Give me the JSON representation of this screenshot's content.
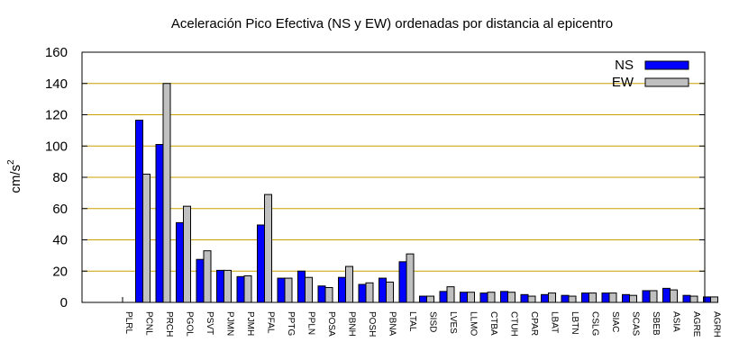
{
  "chart_data": {
    "type": "bar",
    "title": "Aceleración Pico Efectiva (NS y EW) ordenadas por distancia al epicentro",
    "xlabel": "",
    "ylabel": "cm/s",
    "ylabel_superscript": "2",
    "ylim": [
      0,
      160
    ],
    "yticks": [
      0,
      20,
      40,
      60,
      80,
      100,
      120,
      140,
      160
    ],
    "grid": "horizontal",
    "grid_color": "#c8a000",
    "legend_position": "top-right",
    "categories": [
      "PLRL",
      "PCNL",
      "PRCH",
      "PGOL",
      "PSVT",
      "PJMN",
      "PJMH",
      "PFAL",
      "PPTG",
      "PPLN",
      "POSA",
      "PBNH",
      "POSH",
      "PBNA",
      "LTAL",
      "SISD",
      "LVES",
      "LLMO",
      "CTBA",
      "CTUH",
      "CPAR",
      "LBAT",
      "LBTN",
      "CSLG",
      "SIAC",
      "SCAS",
      "SBEB",
      "ASIA",
      "AGRE",
      "AGRH"
    ],
    "series": [
      {
        "name": "NS",
        "color": "#0000ff",
        "values": [
          0,
          116.5,
          101,
          51,
          27.5,
          20.5,
          16.5,
          49.5,
          15.5,
          20,
          10.5,
          16,
          11.5,
          15.5,
          26,
          4,
          7,
          6.5,
          6,
          7,
          5,
          5,
          4.5,
          6,
          6,
          5,
          7.5,
          9,
          4.5,
          3.5
        ]
      },
      {
        "name": "EW",
        "color": "#c0c0c0",
        "values": [
          0,
          82,
          140,
          61.5,
          33,
          20.5,
          17,
          69,
          15.5,
          16,
          9.5,
          23,
          12.5,
          13,
          31,
          4,
          10,
          6.5,
          6.5,
          6.5,
          4,
          6,
          4,
          6,
          6,
          4.5,
          7.5,
          8,
          4,
          3.5
        ]
      }
    ]
  }
}
